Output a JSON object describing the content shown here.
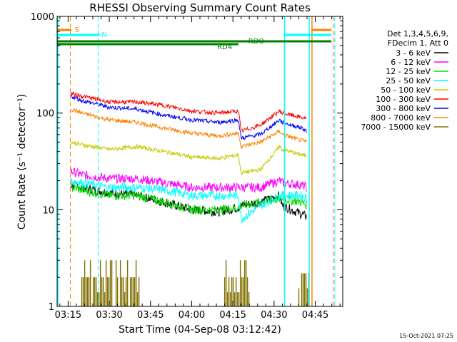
{
  "chart_data": {
    "type": "line",
    "title": "RHESSI Observing Summary Count Rates",
    "xlabel": "Start Time (04-Sep-08 03:12:42)",
    "ylabel": "Count Rate (s⁻¹ detector⁻¹)",
    "yscale": "log",
    "ylim": [
      1,
      1000
    ],
    "xlim_minutes_after_0315": [
      -4,
      100
    ],
    "x_ticks": [
      "03:15",
      "03:30",
      "03:45",
      "04:00",
      "04:15",
      "04:30",
      "04:45"
    ],
    "y_ticks": [
      "1",
      "10",
      "100",
      "1000"
    ],
    "legend_header": [
      "Det 1,3,4,5,6,9,",
      "FDecim 1, Att 0"
    ],
    "legend_position": "right",
    "grid": false,
    "footer_date": "15-Oct-2021 07:25",
    "series": [
      {
        "name": "3 - 6 keV",
        "color": "#000000",
        "x": [
          1,
          5,
          15,
          25,
          35,
          45,
          55,
          62,
          63,
          70,
          77,
          78,
          85,
          87
        ],
        "y": [
          18,
          17,
          15,
          14,
          12,
          10,
          9.5,
          10.5,
          11,
          12,
          14,
          11,
          9,
          8.5
        ]
      },
      {
        "name": "6 - 12 keV",
        "color": "#ff00ff",
        "x": [
          1,
          5,
          15,
          25,
          35,
          45,
          55,
          62,
          63,
          70,
          77,
          78,
          85,
          87
        ],
        "y": [
          25,
          23,
          21,
          21,
          19,
          17,
          17,
          17,
          17,
          17,
          20,
          19,
          18,
          17
        ]
      },
      {
        "name": "12 - 25 keV",
        "color": "#00dd00",
        "x": [
          1,
          5,
          15,
          25,
          35,
          45,
          55,
          62,
          63,
          70,
          77,
          78,
          85,
          87
        ],
        "y": [
          17,
          16,
          14,
          14,
          12,
          10,
          10,
          10.5,
          11,
          12,
          13,
          13,
          12,
          11
        ]
      },
      {
        "name": "25 - 50 keV",
        "color": "#00ffff",
        "x": [
          1,
          5,
          15,
          25,
          35,
          45,
          55,
          62,
          63,
          70,
          77,
          78,
          85,
          87
        ],
        "y": [
          20,
          19,
          17,
          17,
          16,
          14,
          14,
          14,
          8,
          11,
          14,
          14,
          14,
          13
        ]
      },
      {
        "name": "50 - 100 keV",
        "color": "#c8c800",
        "x": [
          1,
          5,
          15,
          25,
          35,
          45,
          55,
          62,
          63,
          70,
          77,
          78,
          85,
          87
        ],
        "y": [
          50,
          47,
          42,
          45,
          40,
          35,
          34,
          37,
          24,
          26,
          45,
          42,
          37,
          36
        ]
      },
      {
        "name": "100 - 300 keV",
        "color": "#ff0000",
        "x": [
          1,
          5,
          15,
          25,
          35,
          45,
          55,
          62,
          63,
          70,
          77,
          78,
          85,
          87
        ],
        "y": [
          160,
          150,
          130,
          130,
          120,
          105,
          100,
          105,
          65,
          75,
          105,
          100,
          90,
          88
        ]
      },
      {
        "name": "300 - 800 keV",
        "color": "#0000ff",
        "x": [
          1,
          5,
          15,
          25,
          35,
          45,
          55,
          62,
          63,
          70,
          77,
          78,
          85,
          87
        ],
        "y": [
          150,
          135,
          115,
          110,
          95,
          85,
          80,
          85,
          55,
          60,
          85,
          80,
          70,
          65
        ]
      },
      {
        "name": "800 - 7000 keV",
        "color": "#ff8000",
        "x": [
          1,
          5,
          15,
          25,
          35,
          45,
          55,
          62,
          63,
          70,
          77,
          78,
          85,
          87
        ],
        "y": [
          110,
          100,
          85,
          80,
          70,
          62,
          58,
          62,
          45,
          50,
          65,
          60,
          52,
          50
        ]
      },
      {
        "name": "7000 - 15000 keV",
        "color": "#807000",
        "x": [],
        "y": []
      }
    ],
    "flag_labels": [
      "S",
      "N",
      "RDO",
      "RD4"
    ]
  }
}
